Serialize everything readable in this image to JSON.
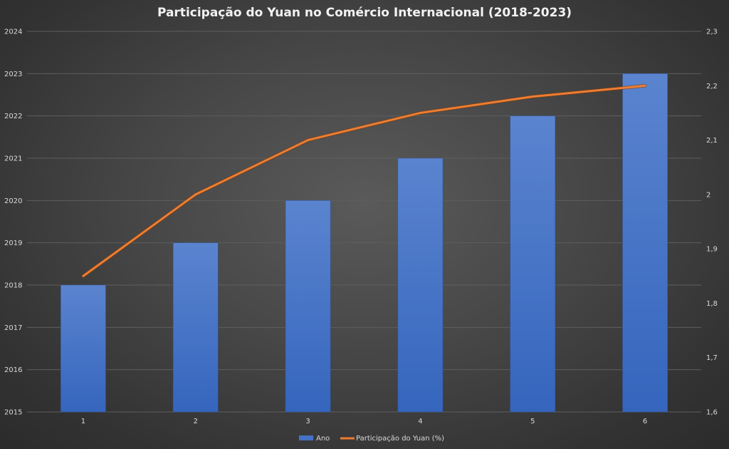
{
  "chart_data": {
    "type": "bar",
    "title": "Participação do Yuan no Comércio Internacional (2018-2023)",
    "categories": [
      "1",
      "2",
      "3",
      "4",
      "5",
      "6"
    ],
    "series": [
      {
        "name": "Ano",
        "type": "bar",
        "axis": "left",
        "values": [
          2018,
          2019,
          2020,
          2021,
          2022,
          2023
        ],
        "color": "#4472c4"
      },
      {
        "name": "Participação do Yuan (%)",
        "type": "line",
        "axis": "right",
        "values": [
          1.85,
          2.0,
          2.1,
          2.15,
          2.18,
          2.2
        ],
        "color": "#ed7d31"
      }
    ],
    "y_left": {
      "min": 2015,
      "max": 2024,
      "ticks": [
        "2015",
        "2016",
        "2017",
        "2018",
        "2019",
        "2020",
        "2021",
        "2022",
        "2023",
        "2024"
      ]
    },
    "y_right": {
      "min": 1.6,
      "max": 2.3,
      "ticks": [
        "1,6",
        "1,7",
        "1,8",
        "1,9",
        "2",
        "2,1",
        "2,2",
        "2,3"
      ]
    },
    "grid": true,
    "legend_position": "bottom"
  }
}
